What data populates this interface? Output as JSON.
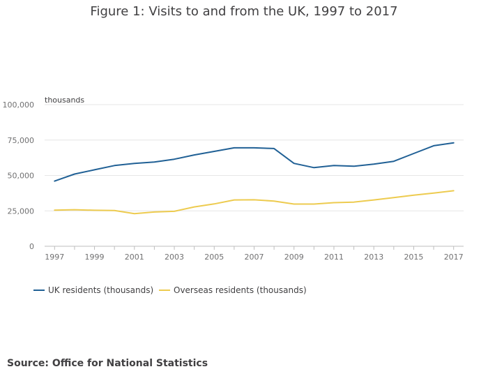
{
  "title": "Figure 1: Visits to and from the UK, 1997 to 2017",
  "source": "Source: Office for National Statistics",
  "colors": {
    "uk": "#206095",
    "overseas": "#EDCB4F",
    "grid": "#e6e6e6",
    "axis": "#bdbdbd"
  },
  "chart_data": {
    "type": "line",
    "title": "Figure 1: Visits to and from the UK, 1997 to 2017",
    "ylabel": "thousands",
    "xlabel": "",
    "x": [
      1997,
      1998,
      1999,
      2000,
      2001,
      2002,
      2003,
      2004,
      2005,
      2006,
      2007,
      2008,
      2009,
      2010,
      2011,
      2012,
      2013,
      2014,
      2015,
      2016,
      2017
    ],
    "series": [
      {
        "name": "UK residents (thousands)",
        "values": [
          46000,
          51000,
          54000,
          57000,
          58500,
          59500,
          61500,
          64500,
          67000,
          69500,
          69500,
          69000,
          58500,
          55500,
          57000,
          56500,
          58000,
          60000,
          65500,
          71000,
          73000
        ]
      },
      {
        "name": "Overseas residents (thousands)",
        "values": [
          25500,
          25800,
          25400,
          25200,
          23000,
          24200,
          24700,
          27800,
          29900,
          32700,
          32800,
          31900,
          29800,
          29800,
          30800,
          31200,
          32700,
          34400,
          36100,
          37600,
          39200
        ]
      }
    ],
    "ylim": [
      0,
      100000
    ],
    "yticks": [
      0,
      25000,
      50000,
      75000,
      100000
    ],
    "ytick_labels": [
      "0",
      "25,000",
      "50,000",
      "75,000",
      "100,000"
    ],
    "xticks": [
      1997,
      1999,
      2001,
      2003,
      2005,
      2007,
      2009,
      2011,
      2013,
      2015,
      2017
    ],
    "xtick_labels": [
      "1997",
      "1999",
      "2001",
      "2003",
      "2005",
      "2007",
      "2009",
      "2011",
      "2013",
      "2015",
      "2017"
    ],
    "grid": true,
    "legend_position": "bottom-left"
  }
}
